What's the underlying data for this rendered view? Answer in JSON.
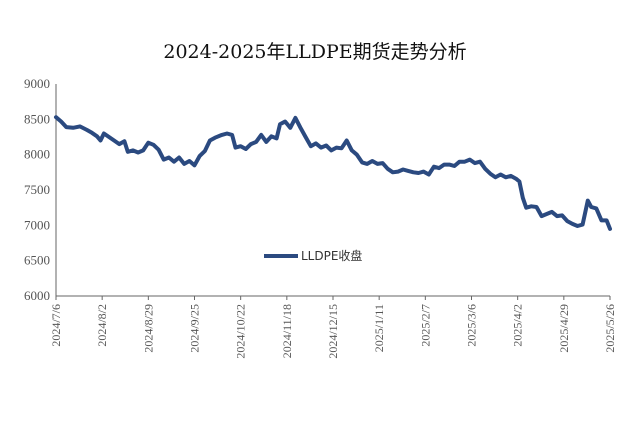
{
  "chart_data": {
    "type": "line",
    "title": "2024-2025年LLDPE期货走势分析",
    "xlabel": "",
    "ylabel": "",
    "ylim": [
      6000,
      9000
    ],
    "yticks": [
      6000,
      6500,
      7000,
      7500,
      8000,
      8500,
      9000
    ],
    "xticks": [
      "2024/7/6",
      "2024/8/2",
      "2024/8/29",
      "2024/9/25",
      "2024/10/22",
      "2024/11/18",
      "2024/12/15",
      "2025/1/11",
      "2025/2/7",
      "2025/3/6",
      "2025/4/2",
      "2025/4/29",
      "2025/5/26"
    ],
    "grid": false,
    "legend": "center",
    "color": "#2b4a80",
    "series": [
      {
        "name": "LLDPE收盘",
        "points": [
          [
            "2024-07-06",
            8530
          ],
          [
            "2024-07-09",
            8470
          ],
          [
            "2024-07-12",
            8390
          ],
          [
            "2024-07-16",
            8380
          ],
          [
            "2024-07-20",
            8400
          ],
          [
            "2024-07-24",
            8350
          ],
          [
            "2024-07-27",
            8310
          ],
          [
            "2024-07-30",
            8260
          ],
          [
            "2024-08-01",
            8200
          ],
          [
            "2024-08-03",
            8300
          ],
          [
            "2024-08-06",
            8250
          ],
          [
            "2024-08-09",
            8200
          ],
          [
            "2024-08-12",
            8150
          ],
          [
            "2024-08-15",
            8190
          ],
          [
            "2024-08-17",
            8040
          ],
          [
            "2024-08-20",
            8060
          ],
          [
            "2024-08-23",
            8030
          ],
          [
            "2024-08-26",
            8060
          ],
          [
            "2024-08-29",
            8170
          ],
          [
            "2024-09-01",
            8140
          ],
          [
            "2024-09-04",
            8070
          ],
          [
            "2024-09-07",
            7930
          ],
          [
            "2024-09-10",
            7960
          ],
          [
            "2024-09-13",
            7900
          ],
          [
            "2024-09-16",
            7960
          ],
          [
            "2024-09-19",
            7870
          ],
          [
            "2024-09-22",
            7910
          ],
          [
            "2024-09-25",
            7850
          ],
          [
            "2024-09-28",
            7980
          ],
          [
            "2024-10-01",
            8050
          ],
          [
            "2024-10-04",
            8200
          ],
          [
            "2024-10-07",
            8240
          ],
          [
            "2024-10-11",
            8280
          ],
          [
            "2024-10-14",
            8300
          ],
          [
            "2024-10-17",
            8280
          ],
          [
            "2024-10-19",
            8100
          ],
          [
            "2024-10-22",
            8120
          ],
          [
            "2024-10-25",
            8080
          ],
          [
            "2024-10-28",
            8150
          ],
          [
            "2024-10-31",
            8180
          ],
          [
            "2024-11-03",
            8280
          ],
          [
            "2024-11-06",
            8180
          ],
          [
            "2024-11-09",
            8260
          ],
          [
            "2024-11-12",
            8230
          ],
          [
            "2024-11-14",
            8430
          ],
          [
            "2024-11-17",
            8470
          ],
          [
            "2024-11-20",
            8380
          ],
          [
            "2024-11-23",
            8520
          ],
          [
            "2024-11-26",
            8380
          ],
          [
            "2024-11-29",
            8250
          ],
          [
            "2024-12-02",
            8120
          ],
          [
            "2024-12-05",
            8160
          ],
          [
            "2024-12-08",
            8100
          ],
          [
            "2024-12-11",
            8130
          ],
          [
            "2024-12-14",
            8060
          ],
          [
            "2024-12-17",
            8100
          ],
          [
            "2024-12-20",
            8090
          ],
          [
            "2024-12-23",
            8200
          ],
          [
            "2024-12-26",
            8060
          ],
          [
            "2024-12-29",
            8000
          ],
          [
            "2025-01-01",
            7890
          ],
          [
            "2025-01-04",
            7870
          ],
          [
            "2025-01-07",
            7910
          ],
          [
            "2025-01-10",
            7870
          ],
          [
            "2025-01-13",
            7880
          ],
          [
            "2025-01-16",
            7800
          ],
          [
            "2025-01-19",
            7750
          ],
          [
            "2025-01-22",
            7760
          ],
          [
            "2025-01-25",
            7790
          ],
          [
            "2025-01-28",
            7770
          ],
          [
            "2025-01-31",
            7750
          ],
          [
            "2025-02-03",
            7740
          ],
          [
            "2025-02-06",
            7760
          ],
          [
            "2025-02-09",
            7720
          ],
          [
            "2025-02-12",
            7830
          ],
          [
            "2025-02-15",
            7810
          ],
          [
            "2025-02-18",
            7860
          ],
          [
            "2025-02-21",
            7860
          ],
          [
            "2025-02-24",
            7840
          ],
          [
            "2025-02-27",
            7900
          ],
          [
            "2025-03-02",
            7900
          ],
          [
            "2025-03-05",
            7930
          ],
          [
            "2025-03-08",
            7880
          ],
          [
            "2025-03-11",
            7900
          ],
          [
            "2025-03-14",
            7800
          ],
          [
            "2025-03-17",
            7730
          ],
          [
            "2025-03-20",
            7680
          ],
          [
            "2025-03-23",
            7720
          ],
          [
            "2025-03-26",
            7680
          ],
          [
            "2025-03-29",
            7700
          ],
          [
            "2025-04-01",
            7660
          ],
          [
            "2025-04-03",
            7620
          ],
          [
            "2025-04-05",
            7390
          ],
          [
            "2025-04-07",
            7250
          ],
          [
            "2025-04-10",
            7270
          ],
          [
            "2025-04-13",
            7260
          ],
          [
            "2025-04-16",
            7130
          ],
          [
            "2025-04-19",
            7160
          ],
          [
            "2025-04-22",
            7190
          ],
          [
            "2025-04-25",
            7130
          ],
          [
            "2025-04-28",
            7140
          ],
          [
            "2025-05-01",
            7060
          ],
          [
            "2025-05-04",
            7020
          ],
          [
            "2025-05-07",
            6990
          ],
          [
            "2025-05-10",
            7010
          ],
          [
            "2025-05-13",
            7350
          ],
          [
            "2025-05-15",
            7260
          ],
          [
            "2025-05-18",
            7240
          ],
          [
            "2025-05-21",
            7070
          ],
          [
            "2025-05-24",
            7070
          ],
          [
            "2025-05-26",
            6950
          ]
        ]
      }
    ]
  }
}
